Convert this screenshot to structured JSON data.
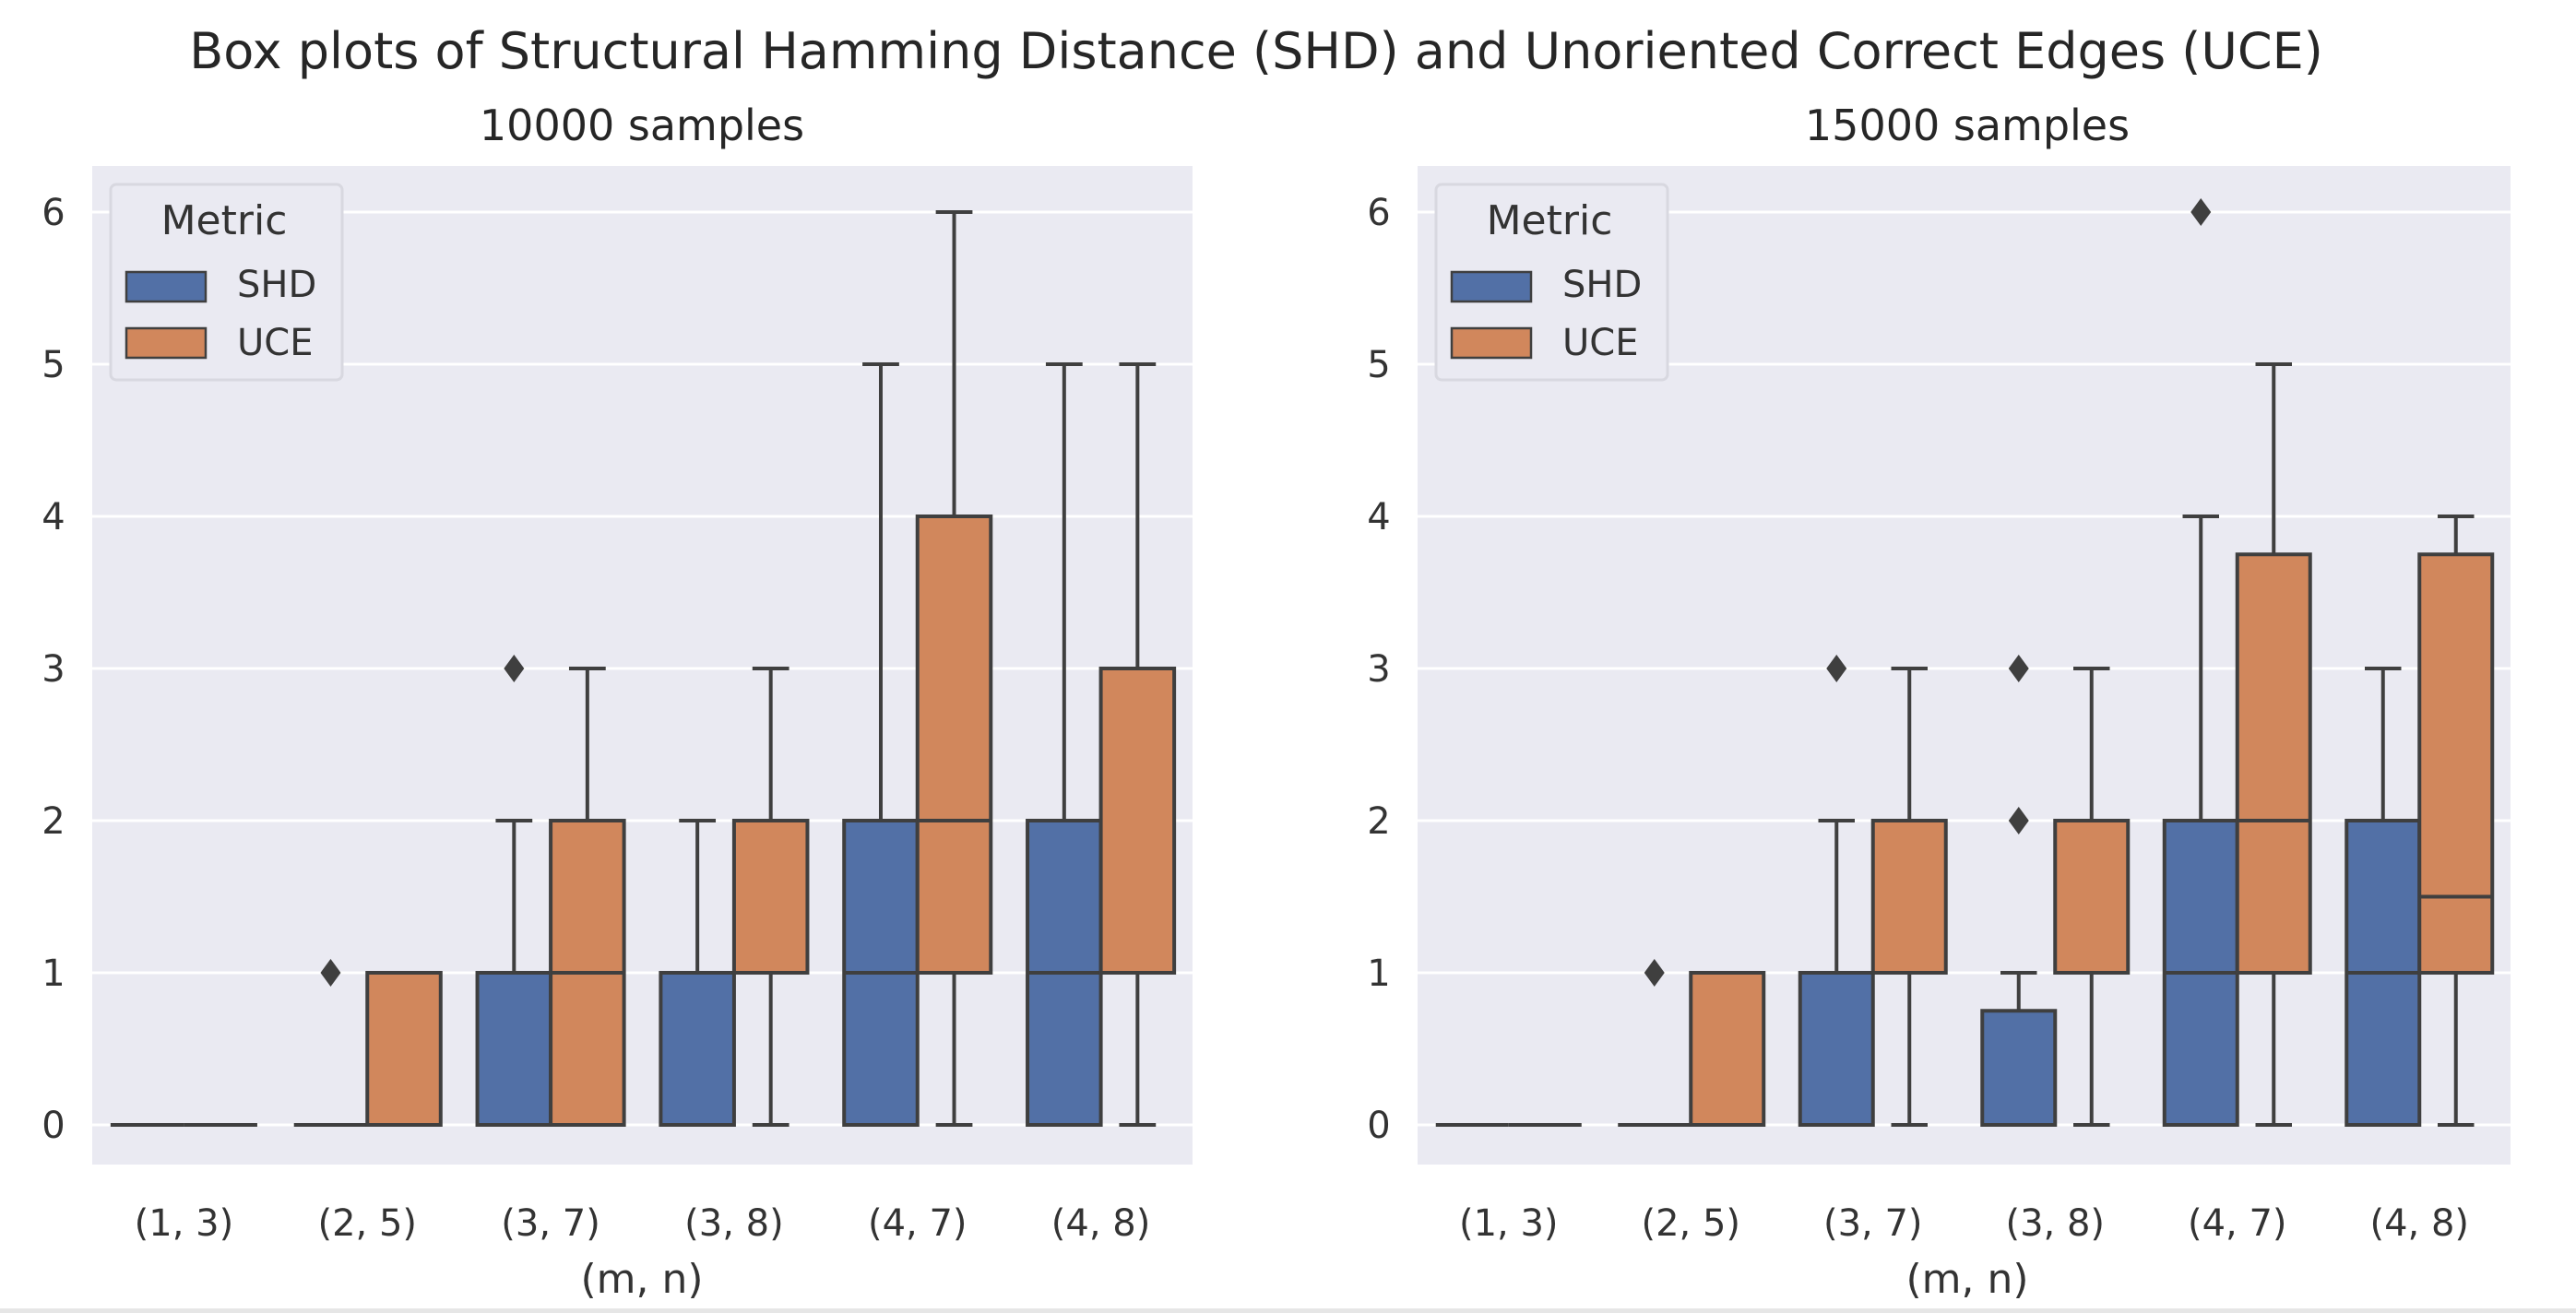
{
  "figure": {
    "suptitle": "Box plots of Structural Hamming Distance (SHD) and Unoriented Correct Edges (UCE)"
  },
  "colors": {
    "SHD": "#5270a6",
    "UCE": "#d1875c",
    "edge": "#3f3f3f",
    "axes_bg": "#eaeaf2",
    "grid": "#ffffff"
  },
  "chart_data": [
    {
      "type": "box",
      "title": "10000 samples",
      "xlabel": "(m, n)",
      "ylabel": "",
      "ylim": [
        -0.27,
        6.3
      ],
      "yticks": [
        0,
        1,
        2,
        3,
        4,
        5,
        6
      ],
      "grid": true,
      "legend": {
        "title": "Metric",
        "entries": [
          "SHD",
          "UCE"
        ],
        "placement": "top-left"
      },
      "categories": [
        "(1, 3)",
        "(2, 5)",
        "(3, 7)",
        "(3, 8)",
        "(4, 7)",
        "(4, 8)"
      ],
      "series": [
        {
          "name": "SHD",
          "boxes": [
            {
              "q1": 0,
              "median": 0,
              "q3": 0,
              "whislo": 0,
              "whishi": 0,
              "fliers": []
            },
            {
              "q1": 0,
              "median": 0,
              "q3": 0,
              "whislo": 0,
              "whishi": 0,
              "fliers": [
                1
              ]
            },
            {
              "q1": 0,
              "median": 1,
              "q3": 1,
              "whislo": 0,
              "whishi": 2,
              "fliers": [
                3
              ]
            },
            {
              "q1": 0,
              "median": 1,
              "q3": 1,
              "whislo": 0,
              "whishi": 2,
              "fliers": []
            },
            {
              "q1": 0,
              "median": 1,
              "q3": 2,
              "whislo": 0,
              "whishi": 5,
              "fliers": []
            },
            {
              "q1": 0,
              "median": 1,
              "q3": 2,
              "whislo": 0,
              "whishi": 5,
              "fliers": []
            }
          ]
        },
        {
          "name": "UCE",
          "boxes": [
            {
              "q1": 0,
              "median": 0,
              "q3": 0,
              "whislo": 0,
              "whishi": 0,
              "fliers": []
            },
            {
              "q1": 0,
              "median": 1,
              "q3": 1,
              "whislo": 0,
              "whishi": 1,
              "fliers": []
            },
            {
              "q1": 0,
              "median": 1,
              "q3": 2,
              "whislo": 0,
              "whishi": 3,
              "fliers": []
            },
            {
              "q1": 1,
              "median": 2,
              "q3": 2,
              "whislo": 0,
              "whishi": 3,
              "fliers": []
            },
            {
              "q1": 1,
              "median": 2,
              "q3": 4,
              "whislo": 0,
              "whishi": 6,
              "fliers": []
            },
            {
              "q1": 1,
              "median": 1,
              "q3": 3,
              "whislo": 0,
              "whishi": 5,
              "fliers": []
            }
          ]
        }
      ]
    },
    {
      "type": "box",
      "title": "15000 samples",
      "xlabel": "(m, n)",
      "ylabel": "",
      "ylim": [
        -0.27,
        6.3
      ],
      "yticks": [
        0,
        1,
        2,
        3,
        4,
        5,
        6
      ],
      "grid": true,
      "legend": {
        "title": "Metric",
        "entries": [
          "SHD",
          "UCE"
        ],
        "placement": "top-left"
      },
      "categories": [
        "(1, 3)",
        "(2, 5)",
        "(3, 7)",
        "(3, 8)",
        "(4, 7)",
        "(4, 8)"
      ],
      "series": [
        {
          "name": "SHD",
          "boxes": [
            {
              "q1": 0,
              "median": 0,
              "q3": 0,
              "whislo": 0,
              "whishi": 0,
              "fliers": []
            },
            {
              "q1": 0,
              "median": 0,
              "q3": 0,
              "whislo": 0,
              "whishi": 0,
              "fliers": [
                1
              ]
            },
            {
              "q1": 0,
              "median": 1,
              "q3": 1,
              "whislo": 0,
              "whishi": 2,
              "fliers": [
                3
              ]
            },
            {
              "q1": 0,
              "median": 0,
              "q3": 0.75,
              "whislo": 0,
              "whishi": 1,
              "fliers": [
                2,
                3
              ]
            },
            {
              "q1": 0,
              "median": 1,
              "q3": 2,
              "whislo": 0,
              "whishi": 4,
              "fliers": [
                6
              ]
            },
            {
              "q1": 0,
              "median": 1,
              "q3": 2,
              "whislo": 0,
              "whishi": 3,
              "fliers": []
            }
          ]
        },
        {
          "name": "UCE",
          "boxes": [
            {
              "q1": 0,
              "median": 0,
              "q3": 0,
              "whislo": 0,
              "whishi": 0,
              "fliers": []
            },
            {
              "q1": 0,
              "median": 1,
              "q3": 1,
              "whislo": 0,
              "whishi": 1,
              "fliers": []
            },
            {
              "q1": 1,
              "median": 2,
              "q3": 2,
              "whislo": 0,
              "whishi": 3,
              "fliers": []
            },
            {
              "q1": 1,
              "median": 2,
              "q3": 2,
              "whislo": 0,
              "whishi": 3,
              "fliers": []
            },
            {
              "q1": 1,
              "median": 2,
              "q3": 3.75,
              "whislo": 0,
              "whishi": 5,
              "fliers": []
            },
            {
              "q1": 1,
              "median": 1.5,
              "q3": 3.75,
              "whislo": 0,
              "whishi": 4,
              "fliers": []
            }
          ]
        }
      ]
    }
  ]
}
